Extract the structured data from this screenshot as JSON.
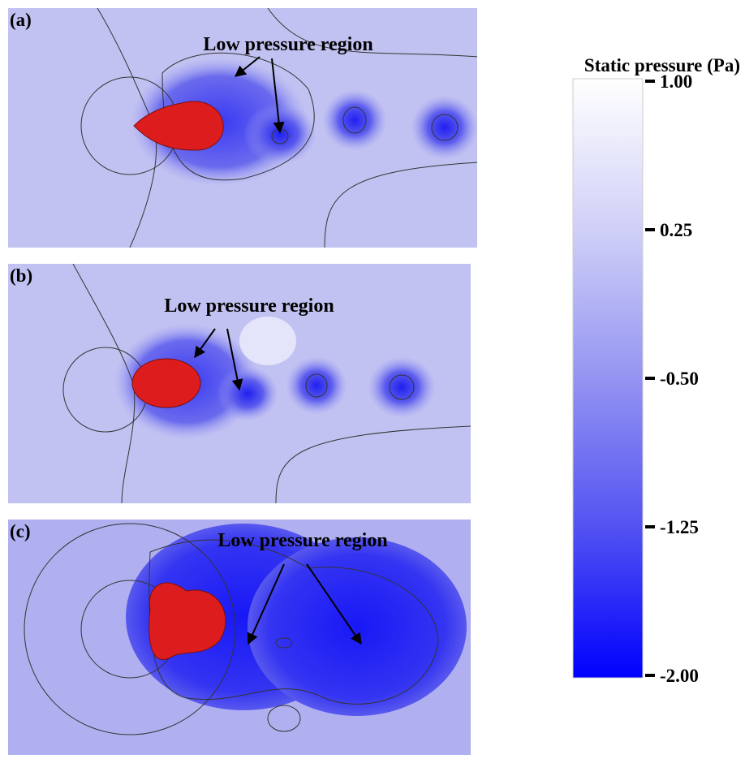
{
  "panels": [
    {
      "label": "(a)",
      "annotation": "Low pressure region"
    },
    {
      "label": "(b)",
      "annotation": "Low pressure region"
    },
    {
      "label": "(c)",
      "annotation": "Low pressure region"
    }
  ],
  "colorbar": {
    "title": "Static pressure (Pa)",
    "lim": [
      -2,
      1
    ],
    "ticks": [
      {
        "value": 1,
        "label": "1.00"
      },
      {
        "value": 0.25,
        "label": "0.25"
      },
      {
        "value": -0.5,
        "label": "-0.50"
      },
      {
        "value": -1.25,
        "label": "-1.25"
      },
      {
        "value": -2,
        "label": "-2.00"
      }
    ]
  }
}
